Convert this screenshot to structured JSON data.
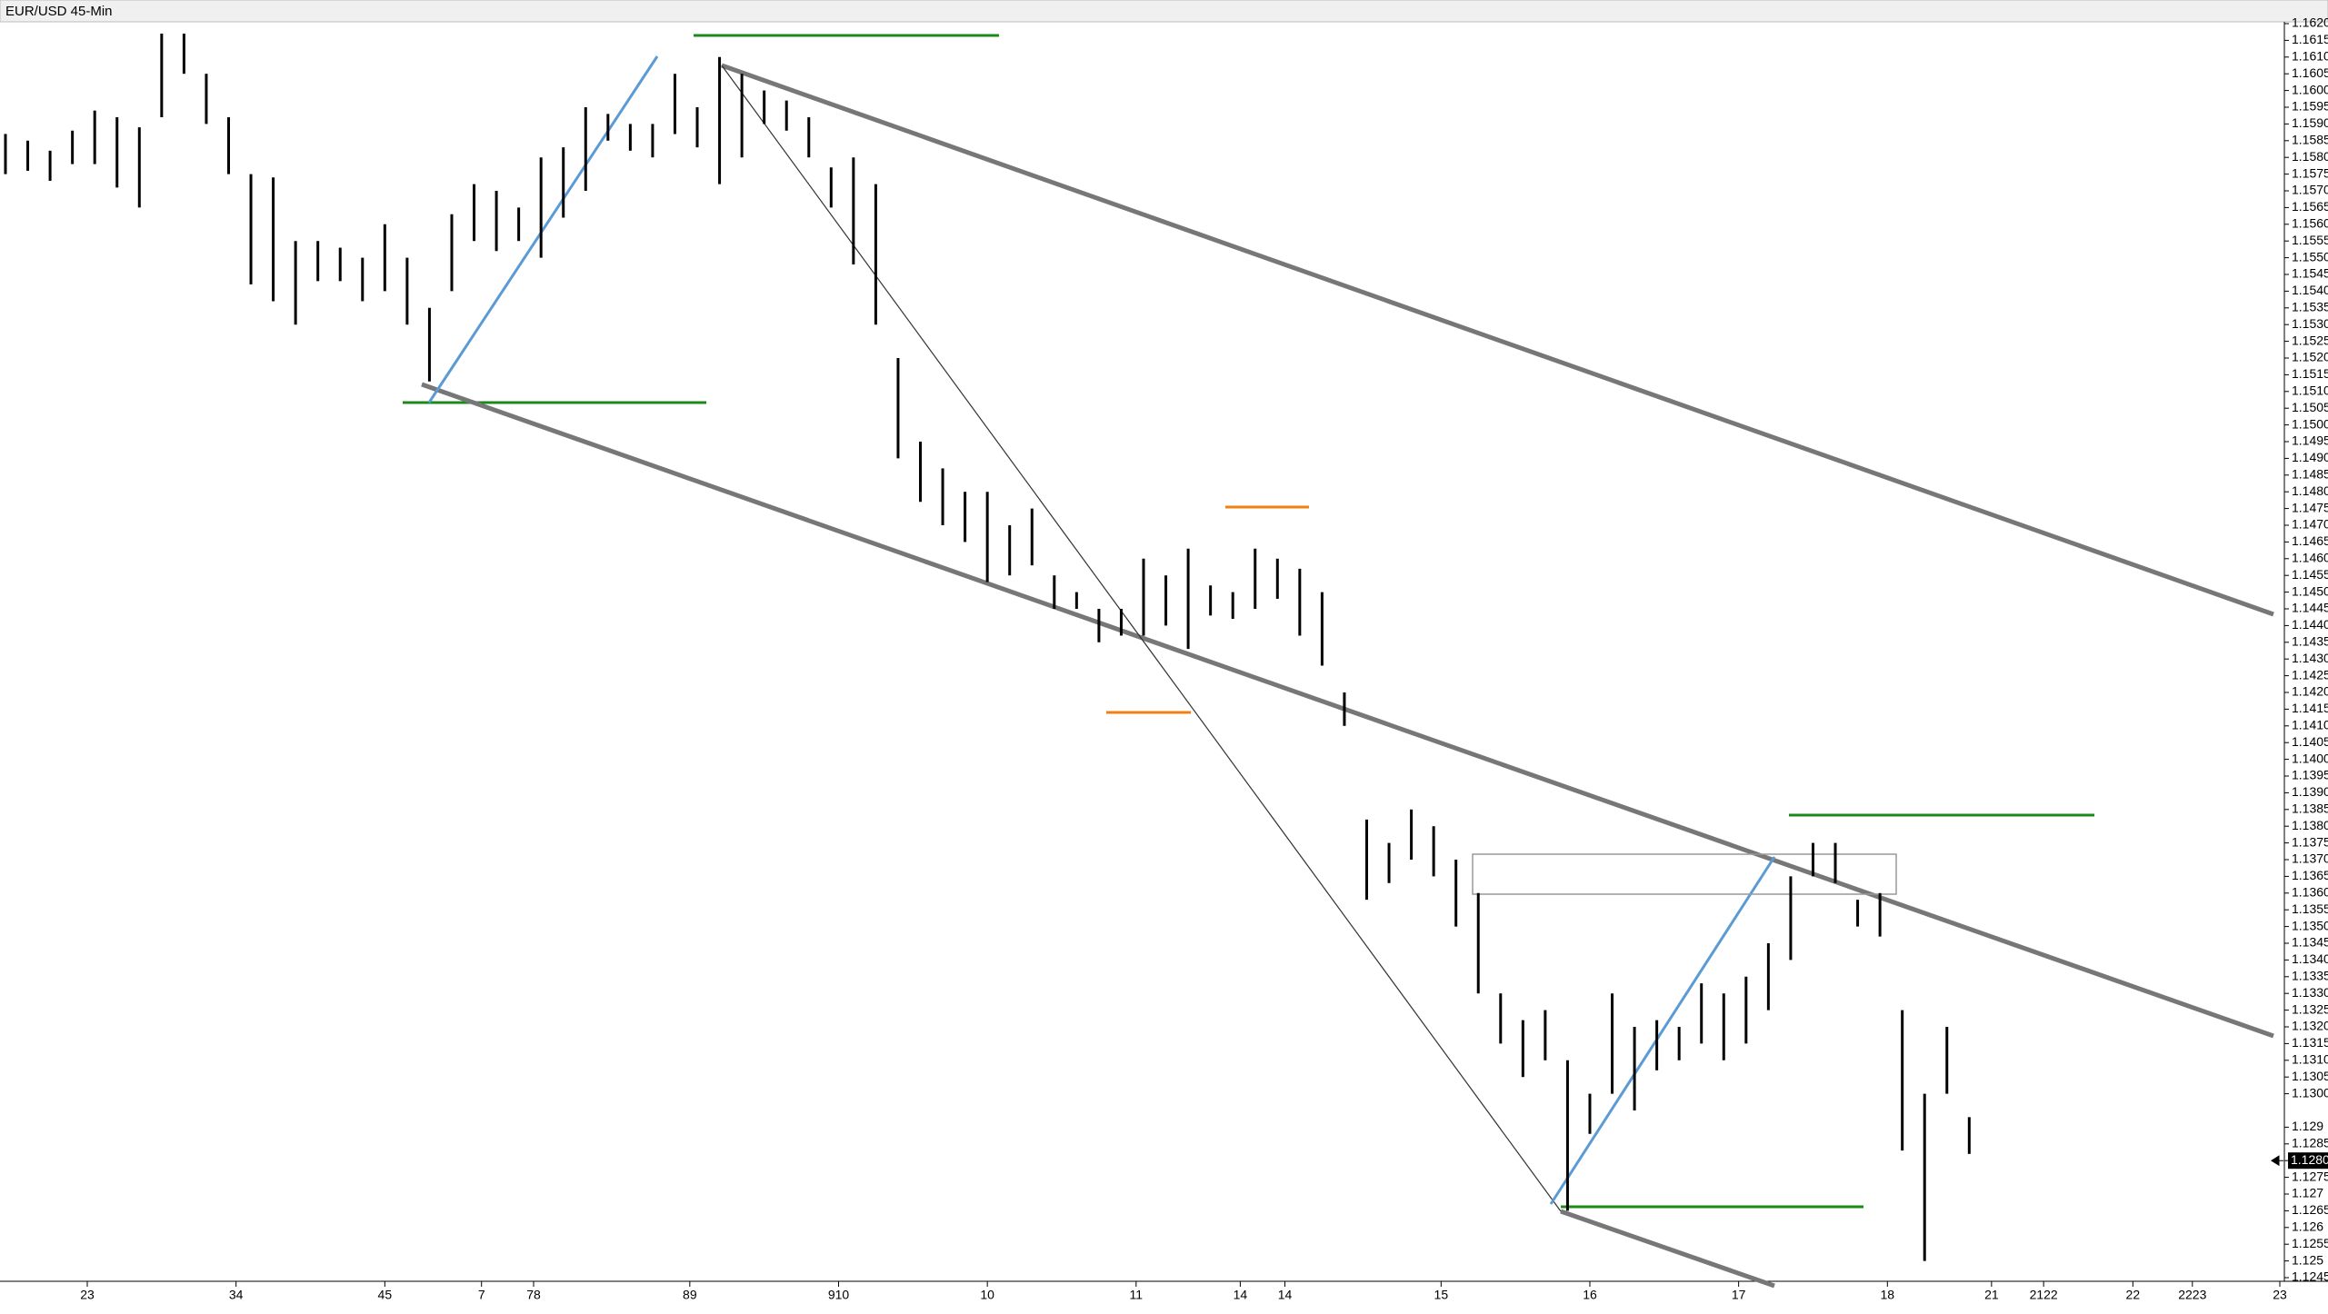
{
  "chart_data": {
    "type": "range_bar",
    "title": "EUR/USD 45-Min",
    "color": "#000000",
    "x": [
      0,
      3,
      6,
      9,
      12,
      15,
      18,
      21,
      24,
      27,
      30,
      33,
      36,
      39,
      42,
      45,
      48,
      51,
      54,
      57,
      60,
      63,
      66,
      69,
      72,
      75,
      78,
      81,
      84,
      87,
      90,
      93,
      96,
      99,
      102,
      105,
      108,
      111,
      114,
      117,
      120,
      123,
      126,
      129,
      132,
      135,
      138,
      141,
      144,
      147,
      150,
      153,
      156,
      159,
      162,
      165,
      168,
      171,
      174,
      177,
      180,
      183,
      186,
      189,
      192,
      195,
      198,
      201,
      204,
      207,
      210,
      213,
      216,
      219,
      222,
      225,
      228,
      231,
      234,
      237,
      240,
      243,
      246,
      249,
      252,
      255,
      258,
      261,
      264
    ],
    "high": [
      1.1587,
      1.1585,
      1.1582,
      1.1588,
      1.1594,
      1.1592,
      1.1589,
      1.1617,
      1.1617,
      1.1605,
      1.1592,
      1.1575,
      1.1574,
      1.1555,
      1.1555,
      1.1553,
      1.155,
      1.156,
      1.155,
      1.1535,
      1.1563,
      1.1572,
      1.157,
      1.1565,
      1.158,
      1.1583,
      1.1595,
      1.1593,
      1.159,
      1.159,
      1.1605,
      1.1595,
      1.161,
      1.1605,
      1.16,
      1.1597,
      1.1592,
      1.1577,
      1.158,
      1.1572,
      1.152,
      1.1495,
      1.1487,
      1.148,
      1.148,
      1.147,
      1.1475,
      1.1455,
      1.145,
      1.1445,
      1.1445,
      1.146,
      1.1455,
      1.1463,
      1.1452,
      1.145,
      1.1463,
      1.146,
      1.1457,
      1.145,
      1.142,
      1.1382,
      1.1375,
      1.1385,
      1.138,
      1.137,
      1.136,
      1.133,
      1.1322,
      1.1325,
      1.131,
      1.13,
      1.133,
      1.132,
      1.1322,
      1.132,
      1.1333,
      1.133,
      1.1335,
      1.1345,
      1.1365,
      1.1375,
      1.1375,
      1.1358,
      1.136,
      1.1325,
      1.13,
      1.132,
      1.1293
    ],
    "low": [
      1.1575,
      1.1576,
      1.1573,
      1.1578,
      1.1578,
      1.1571,
      1.1565,
      1.1592,
      1.1605,
      1.159,
      1.1575,
      1.1542,
      1.1537,
      1.153,
      1.1543,
      1.1543,
      1.1537,
      1.154,
      1.153,
      1.1513,
      1.154,
      1.1555,
      1.1552,
      1.1555,
      1.155,
      1.1562,
      1.157,
      1.1585,
      1.1582,
      1.158,
      1.1587,
      1.1583,
      1.1572,
      1.158,
      1.159,
      1.1588,
      1.158,
      1.1565,
      1.1548,
      1.153,
      1.149,
      1.1477,
      1.147,
      1.1465,
      1.1453,
      1.1455,
      1.1458,
      1.1445,
      1.1445,
      1.1435,
      1.1437,
      1.1437,
      1.144,
      1.1433,
      1.1443,
      1.1442,
      1.1445,
      1.1448,
      1.1437,
      1.1428,
      1.141,
      1.1358,
      1.1363,
      1.137,
      1.1365,
      1.135,
      1.133,
      1.1315,
      1.1305,
      1.131,
      1.1265,
      1.1288,
      1.13,
      1.1295,
      1.1307,
      1.131,
      1.1315,
      1.131,
      1.1315,
      1.1325,
      1.134,
      1.1365,
      1.1363,
      1.135,
      1.1347,
      1.1283,
      1.125,
      1.13,
      1.1282
    ],
    "xlim": [
      0,
      306
    ],
    "xticks": [
      {
        "value": 11,
        "label": "23"
      },
      {
        "value": 31,
        "label": "34"
      },
      {
        "value": 51,
        "label": "45"
      },
      {
        "value": 64,
        "label": "7"
      },
      {
        "value": 71,
        "label": "78"
      },
      {
        "value": 92,
        "label": "89"
      },
      {
        "value": 112,
        "label": "910"
      },
      {
        "value": 132,
        "label": "10"
      },
      {
        "value": 152,
        "label": "11"
      },
      {
        "value": 166,
        "label": "14"
      },
      {
        "value": 172,
        "label": "14"
      },
      {
        "value": 193,
        "label": "15"
      },
      {
        "value": 213,
        "label": "16"
      },
      {
        "value": 233,
        "label": "17"
      },
      {
        "value": 253,
        "label": "18"
      },
      {
        "value": 267,
        "label": "21"
      },
      {
        "value": 274,
        "label": "2122"
      },
      {
        "value": 286,
        "label": "22"
      },
      {
        "value": 294,
        "label": "2223"
      },
      {
        "value": 306,
        "label": "23"
      }
    ],
    "ylim": [
      1.1245,
      1.162
    ],
    "yticks": [
      1.1245,
      1.125,
      1.1255,
      1.126,
      1.1265,
      1.127,
      1.1275,
      1.128,
      1.1285,
      1.129,
      {
        "value": 1.13,
        "label": "1.1300"
      },
      1.1305,
      {
        "value": 1.131,
        "label": "1.1310"
      },
      1.1315,
      {
        "value": 1.132,
        "label": "1.1320"
      },
      1.1325,
      {
        "value": 1.133,
        "label": "1.1330"
      },
      1.1335,
      {
        "value": 1.134,
        "label": "1.1340"
      },
      1.1345,
      {
        "value": 1.135,
        "label": "1.1350"
      },
      1.1355,
      {
        "value": 1.136,
        "label": "1.1360"
      },
      1.1365,
      {
        "value": 1.137,
        "label": "1.1370"
      },
      1.1375,
      {
        "value": 1.138,
        "label": "1.1380"
      },
      1.1385,
      {
        "value": 1.139,
        "label": "1.1390"
      },
      1.1395,
      {
        "value": 1.14,
        "label": "1.1400"
      },
      1.1405,
      {
        "value": 1.141,
        "label": "1.1410"
      },
      1.1415,
      {
        "value": 1.142,
        "label": "1.1420"
      },
      1.1425,
      {
        "value": 1.143,
        "label": "1.1430"
      },
      1.1435,
      {
        "value": 1.144,
        "label": "1.1440"
      },
      1.1445,
      {
        "value": 1.145,
        "label": "1.1450"
      },
      1.1455,
      {
        "value": 1.146,
        "label": "1.1460"
      },
      1.1465,
      {
        "value": 1.147,
        "label": "1.1470"
      },
      1.1475,
      {
        "value": 1.148,
        "label": "1.1480"
      },
      1.1485,
      {
        "value": 1.149,
        "label": "1.1490"
      },
      1.1495,
      {
        "value": 1.15,
        "label": "1.1500"
      },
      1.1505,
      {
        "value": 1.151,
        "label": "1.1510"
      },
      1.1515,
      {
        "value": 1.152,
        "label": "1.1520"
      },
      1.1525,
      {
        "value": 1.153,
        "label": "1.1530"
      },
      1.1535,
      {
        "value": 1.154,
        "label": "1.1540"
      },
      1.1545,
      {
        "value": 1.155,
        "label": "1.1550"
      },
      1.1555,
      {
        "value": 1.156,
        "label": "1.1560"
      },
      1.1565,
      {
        "value": 1.157,
        "label": "1.1570"
      },
      1.1575,
      {
        "value": 1.158,
        "label": "1.1580"
      },
      1.1585,
      {
        "value": 1.159,
        "label": "1.1590"
      },
      1.1595,
      {
        "value": 1.16,
        "label": "1.1600"
      },
      1.1605,
      {
        "value": 1.161,
        "label": "1.1610"
      },
      1.1615,
      {
        "value": 1.162,
        "label": "1.1620"
      }
    ],
    "last_price": {
      "value": 1.128,
      "label": "1.1280"
    }
  }
}
